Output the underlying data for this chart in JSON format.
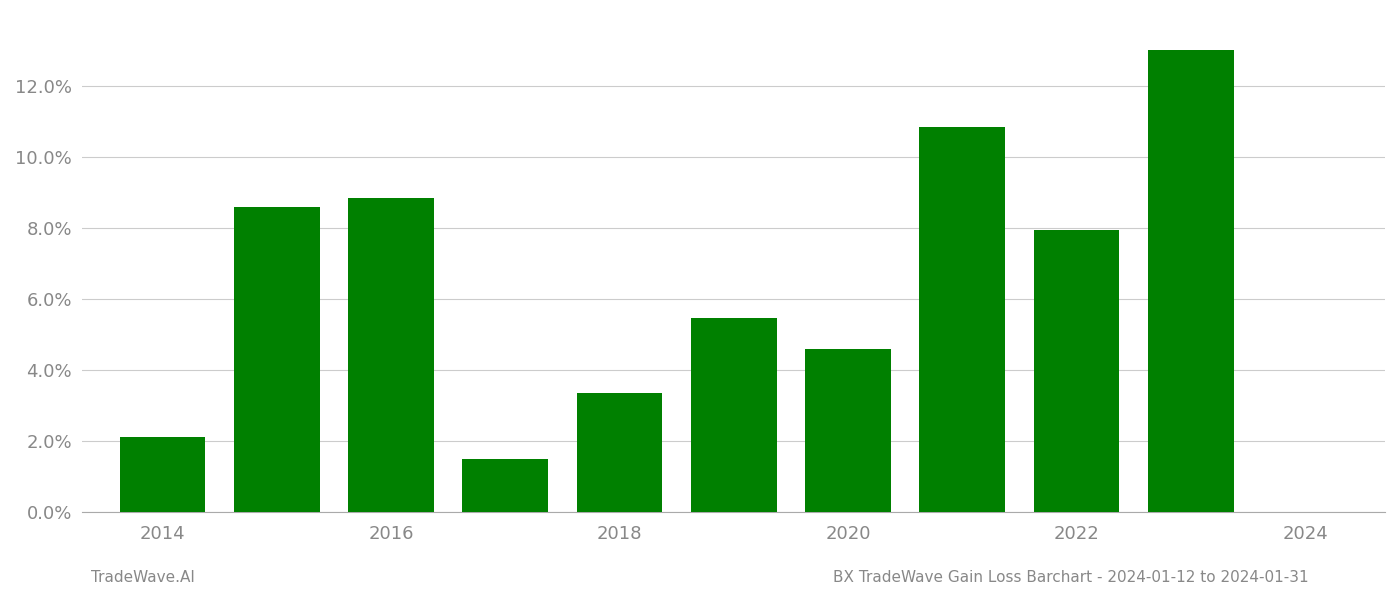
{
  "years": [
    2014,
    2015,
    2016,
    2017,
    2018,
    2019,
    2020,
    2021,
    2022,
    2023
  ],
  "values": [
    0.021,
    0.086,
    0.0885,
    0.015,
    0.0335,
    0.0545,
    0.046,
    0.1085,
    0.0795,
    0.13
  ],
  "bar_color": "#008000",
  "background_color": "#ffffff",
  "grid_color": "#cccccc",
  "axis_color": "#aaaaaa",
  "tick_color": "#888888",
  "ylim": [
    0,
    0.14
  ],
  "yticks": [
    0.0,
    0.02,
    0.04,
    0.06,
    0.08,
    0.1,
    0.12
  ],
  "xlim": [
    2013.3,
    2024.7
  ],
  "xticks": [
    2014,
    2016,
    2018,
    2020,
    2022,
    2024
  ],
  "footer_left": "TradeWave.AI",
  "footer_right": "BX TradeWave Gain Loss Barchart - 2024-01-12 to 2024-01-31",
  "footer_color": "#888888",
  "footer_fontsize": 11,
  "tick_fontsize": 13,
  "bar_width": 0.75
}
